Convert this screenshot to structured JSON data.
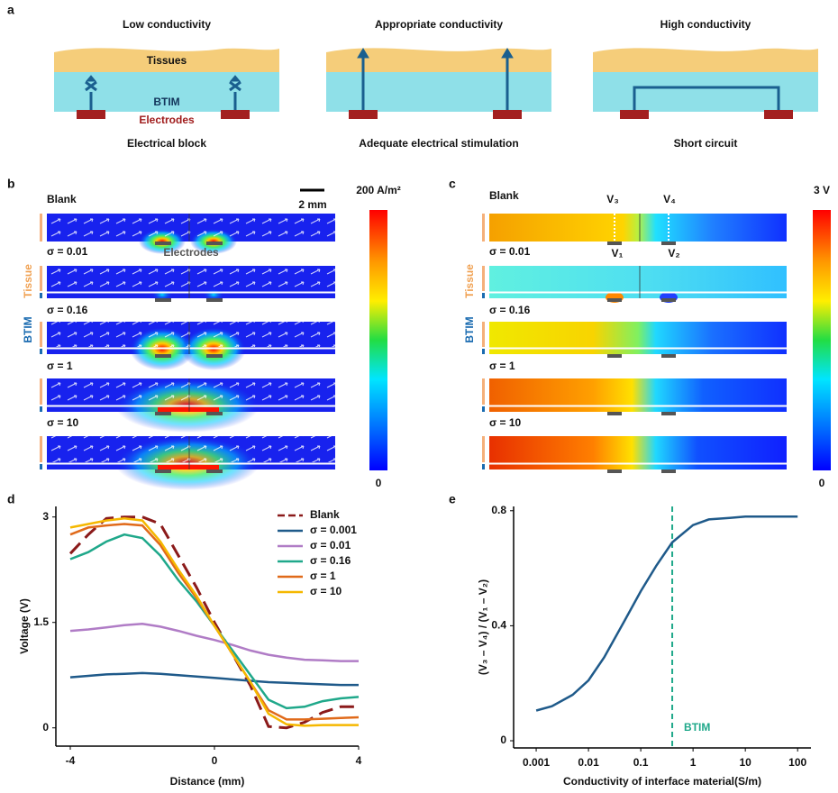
{
  "panel_a": {
    "label": "a",
    "diagrams": [
      {
        "title": "Low conductivity",
        "caption": "Electrical block"
      },
      {
        "title": "Appropriate conductivity",
        "caption": "Adequate electrical stimulation"
      },
      {
        "title": "High conductivity",
        "caption": "Short circuit"
      }
    ],
    "tissue_label": "Tissues",
    "btim_label": "BTIM",
    "electrode_label": "Electrodes"
  },
  "panel_b": {
    "label": "b",
    "scale_bar": "2 mm",
    "colorbar_max": "200 A/m²",
    "colorbar_min": "0",
    "electrodes_label": "Electrodes",
    "tissue_label": "Tissue",
    "btim_label": "BTIM",
    "rows": [
      "Blank",
      "σ = 0.01",
      "σ = 0.16",
      "σ = 1",
      "σ = 10"
    ]
  },
  "panel_c": {
    "label": "c",
    "colorbar_max": "3 V",
    "colorbar_min": "0",
    "probes": [
      "V₃",
      "V₄",
      "V₁",
      "V₂"
    ],
    "tissue_label": "Tissue",
    "btim_label": "BTIM",
    "rows": [
      "Blank",
      "σ = 0.01",
      "σ = 0.16",
      "σ = 1",
      "σ = 10"
    ]
  },
  "chart_data": [
    {
      "type": "line",
      "panel_label": "d",
      "xlabel": "Distance (mm)",
      "ylabel": "Voltage (V)",
      "x": [
        -4,
        -3.5,
        -3,
        -2.5,
        -2,
        -1.5,
        -1,
        -0.5,
        0,
        0.5,
        1,
        1.5,
        2,
        2.5,
        3,
        3.5,
        4
      ],
      "xlim": [
        -4.4,
        4
      ],
      "xticks": [
        -4,
        0,
        4
      ],
      "ylim": [
        -0.26,
        3.15
      ],
      "yticks": [
        0,
        1.5,
        3
      ],
      "legend": "upper right",
      "series": [
        {
          "name": "Blank",
          "color": "#8b1a1a",
          "dashed": true,
          "values": [
            2.48,
            2.75,
            2.98,
            3.0,
            3.0,
            2.9,
            2.45,
            2.0,
            1.5,
            1.05,
            0.6,
            0.02,
            0.0,
            0.08,
            0.22,
            0.3,
            0.3
          ]
        },
        {
          "name": "σ = 0.001",
          "color": "#1f5a8a",
          "values": [
            0.72,
            0.74,
            0.76,
            0.77,
            0.78,
            0.77,
            0.75,
            0.73,
            0.71,
            0.69,
            0.67,
            0.65,
            0.64,
            0.63,
            0.62,
            0.61,
            0.61
          ]
        },
        {
          "name": "σ = 0.01",
          "color": "#b07cc6",
          "values": [
            1.38,
            1.4,
            1.43,
            1.46,
            1.48,
            1.44,
            1.38,
            1.31,
            1.25,
            1.18,
            1.1,
            1.04,
            1.0,
            0.97,
            0.96,
            0.95,
            0.95
          ]
        },
        {
          "name": "σ = 0.16",
          "color": "#1fa88a",
          "values": [
            2.4,
            2.5,
            2.65,
            2.75,
            2.7,
            2.45,
            2.1,
            1.8,
            1.45,
            1.1,
            0.75,
            0.4,
            0.28,
            0.3,
            0.38,
            0.42,
            0.44
          ]
        },
        {
          "name": "σ = 1",
          "color": "#e06a1a",
          "values": [
            2.75,
            2.85,
            2.88,
            2.9,
            2.88,
            2.6,
            2.2,
            1.85,
            1.45,
            1.05,
            0.65,
            0.25,
            0.12,
            0.12,
            0.13,
            0.14,
            0.15
          ]
        },
        {
          "name": "σ = 10",
          "color": "#f5b800",
          "values": [
            2.85,
            2.9,
            2.95,
            2.98,
            2.95,
            2.65,
            2.25,
            1.88,
            1.45,
            1.05,
            0.65,
            0.2,
            0.05,
            0.03,
            0.04,
            0.04,
            0.04
          ]
        }
      ]
    },
    {
      "type": "line",
      "panel_label": "e",
      "xlabel": "Conductivity of interface material(S/m)",
      "ylabel": "(V₃ – V₄) / (V₁ – V₂)",
      "xscale": "log",
      "x": [
        0.001,
        0.002,
        0.005,
        0.01,
        0.02,
        0.05,
        0.1,
        0.2,
        0.4,
        1,
        2,
        5,
        10,
        100
      ],
      "values": [
        0.105,
        0.12,
        0.16,
        0.21,
        0.29,
        0.42,
        0.52,
        0.61,
        0.69,
        0.75,
        0.77,
        0.775,
        0.78,
        0.78
      ],
      "color": "#1f5a8a",
      "xlim": [
        0.00037,
        180
      ],
      "xticks": [
        0.001,
        0.01,
        0.1,
        1,
        10,
        100
      ],
      "ylim": [
        -0.025,
        0.815
      ],
      "yticks": [
        0,
        0.4,
        0.8
      ],
      "vline": {
        "x": 0.4,
        "label": "BTIM",
        "color": "#1fa88a"
      }
    }
  ]
}
